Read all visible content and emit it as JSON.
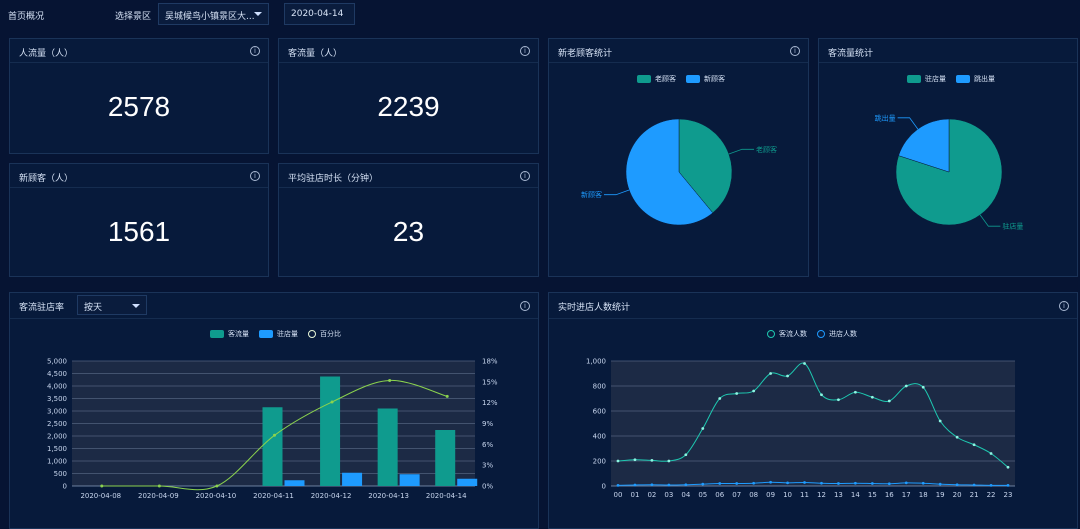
{
  "topbar": {
    "home": "首页概况",
    "select_label": "选择景区",
    "select_value": "吴城候鸟小镇景区大...",
    "date_value": "2020-04-14"
  },
  "kpis": [
    {
      "title": "人流量（人）",
      "value": "2578"
    },
    {
      "title": "客流量（人）",
      "value": "2239"
    },
    {
      "title": "新顾客（人）",
      "value": "1561"
    },
    {
      "title": "平均驻店时长（分钟）",
      "value": "23"
    }
  ],
  "info_glyph": "i",
  "colors": {
    "teal": "#0f9b8e",
    "blue": "#1e9bff",
    "green_line": "#8bd34e",
    "bg": "#061433"
  },
  "chart_data": [
    {
      "type": "pie",
      "title": "新老顾客统计",
      "legend": [
        "老顾客",
        "新顾客"
      ],
      "labels": [
        "老顾客",
        "新顾客"
      ],
      "values": [
        39,
        61
      ],
      "colors": [
        "#0f9b8e",
        "#1e9bff"
      ]
    },
    {
      "type": "pie",
      "title": "客流量统计",
      "legend": [
        "驻店量",
        "跳出量"
      ],
      "labels": [
        "驻店量",
        "跳出量"
      ],
      "values": [
        80,
        20
      ],
      "colors": [
        "#0f9b8e",
        "#1e9bff"
      ]
    },
    {
      "type": "bar",
      "title": "客流驻店率",
      "select_value": "按天",
      "legend": [
        "客流量",
        "驻店量",
        "百分比"
      ],
      "categories": [
        "2020-04-08",
        "2020-04-09",
        "2020-04-10",
        "2020-04-11",
        "2020-04-12",
        "2020-04-13",
        "2020-04-14"
      ],
      "series": [
        {
          "name": "客流量",
          "values": [
            0,
            0,
            0,
            3150,
            4380,
            3100,
            2240
          ]
        },
        {
          "name": "驻店量",
          "values": [
            0,
            0,
            0,
            230,
            530,
            470,
            290
          ]
        },
        {
          "name": "百分比",
          "values": [
            0,
            0,
            0,
            7.3,
            12.1,
            15.2,
            12.9
          ]
        }
      ],
      "ylim": [
        0,
        5000
      ],
      "y_ticks": [
        "0",
        "500",
        "1,000",
        "1,500",
        "2,000",
        "2,500",
        "3,000",
        "3,500",
        "4,000",
        "4,500",
        "5,000"
      ],
      "y2lim": [
        0,
        18
      ],
      "y2_ticks": [
        "0%",
        "3%",
        "6%",
        "9%",
        "12%",
        "15%",
        "18%"
      ]
    },
    {
      "type": "line",
      "title": "实时进店人数统计",
      "legend": [
        "客流人数",
        "进店人数"
      ],
      "categories": [
        "00",
        "01",
        "02",
        "03",
        "04",
        "05",
        "06",
        "07",
        "08",
        "09",
        "10",
        "11",
        "12",
        "13",
        "14",
        "15",
        "16",
        "17",
        "18",
        "19",
        "20",
        "21",
        "22",
        "23"
      ],
      "series": [
        {
          "name": "客流人数",
          "values": [
            200,
            210,
            205,
            200,
            250,
            460,
            700,
            740,
            760,
            900,
            880,
            980,
            730,
            690,
            750,
            710,
            680,
            800,
            790,
            520,
            390,
            330,
            260,
            150
          ]
        },
        {
          "name": "进店人数",
          "values": [
            5,
            8,
            10,
            8,
            10,
            15,
            20,
            20,
            22,
            30,
            25,
            28,
            22,
            20,
            22,
            20,
            18,
            25,
            22,
            15,
            10,
            8,
            5,
            5
          ]
        }
      ],
      "ylim": [
        0,
        1000
      ],
      "y_ticks": [
        "0",
        "200",
        "400",
        "600",
        "800",
        "1,000"
      ]
    }
  ]
}
